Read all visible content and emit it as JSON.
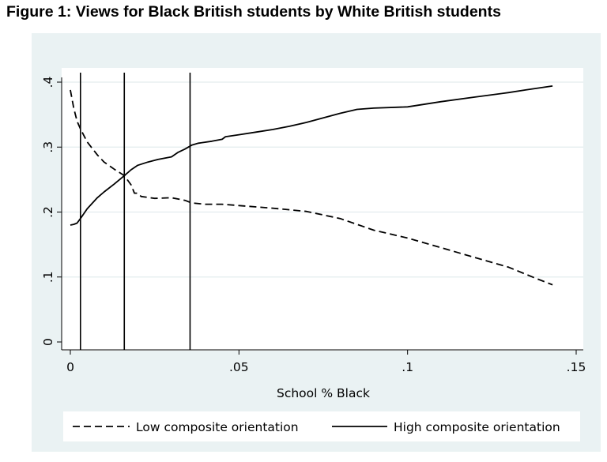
{
  "figure": {
    "title": "Figure 1: Views for Black British students by White British students"
  },
  "chart_data": {
    "type": "line",
    "title": "Figure 1: Views for Black British students by White British students",
    "xlabel": "School % Black",
    "ylabel": "",
    "xlim": [
      0,
      0.15
    ],
    "ylim": [
      0,
      0.4
    ],
    "x_ticks": [
      0,
      0.05,
      0.1,
      0.15
    ],
    "x_tick_labels": [
      "0",
      ".05",
      ".1",
      ".15"
    ],
    "y_ticks": [
      0,
      0.1,
      0.2,
      0.3,
      0.4
    ],
    "y_tick_labels": [
      "0",
      ".1",
      ".2",
      ".3",
      ".4"
    ],
    "grid": true,
    "legend_position": "bottom",
    "vertical_reference_lines": [
      0.003,
      0.016,
      0.0355
    ],
    "series": [
      {
        "name": "Low composite orientation",
        "style": "dashed",
        "color": "#000000",
        "points": [
          [
            0,
            0.388
          ],
          [
            0.001,
            0.36
          ],
          [
            0.002,
            0.34
          ],
          [
            0.003,
            0.328
          ],
          [
            0.005,
            0.308
          ],
          [
            0.008,
            0.288
          ],
          [
            0.01,
            0.277
          ],
          [
            0.013,
            0.266
          ],
          [
            0.016,
            0.256
          ],
          [
            0.018,
            0.242
          ],
          [
            0.019,
            0.229
          ],
          [
            0.02,
            0.229
          ],
          [
            0.021,
            0.224
          ],
          [
            0.025,
            0.221
          ],
          [
            0.03,
            0.222
          ],
          [
            0.034,
            0.218
          ],
          [
            0.036,
            0.214
          ],
          [
            0.04,
            0.212
          ],
          [
            0.045,
            0.212
          ],
          [
            0.05,
            0.21
          ],
          [
            0.06,
            0.206
          ],
          [
            0.07,
            0.201
          ],
          [
            0.08,
            0.19
          ],
          [
            0.085,
            0.181
          ],
          [
            0.09,
            0.172
          ],
          [
            0.1,
            0.16
          ],
          [
            0.11,
            0.145
          ],
          [
            0.12,
            0.13
          ],
          [
            0.13,
            0.115
          ],
          [
            0.138,
            0.098
          ],
          [
            0.143,
            0.088
          ]
        ]
      },
      {
        "name": "High composite orientation",
        "style": "solid",
        "color": "#000000",
        "points": [
          [
            0,
            0.18
          ],
          [
            0.001,
            0.181
          ],
          [
            0.002,
            0.183
          ],
          [
            0.003,
            0.19
          ],
          [
            0.005,
            0.205
          ],
          [
            0.008,
            0.222
          ],
          [
            0.01,
            0.231
          ],
          [
            0.013,
            0.243
          ],
          [
            0.016,
            0.256
          ],
          [
            0.018,
            0.265
          ],
          [
            0.02,
            0.272
          ],
          [
            0.023,
            0.277
          ],
          [
            0.026,
            0.281
          ],
          [
            0.03,
            0.285
          ],
          [
            0.032,
            0.292
          ],
          [
            0.034,
            0.297
          ],
          [
            0.036,
            0.303
          ],
          [
            0.038,
            0.306
          ],
          [
            0.042,
            0.309
          ],
          [
            0.045,
            0.312
          ],
          [
            0.046,
            0.316
          ],
          [
            0.05,
            0.319
          ],
          [
            0.055,
            0.323
          ],
          [
            0.06,
            0.327
          ],
          [
            0.065,
            0.332
          ],
          [
            0.07,
            0.338
          ],
          [
            0.075,
            0.345
          ],
          [
            0.08,
            0.352
          ],
          [
            0.085,
            0.358
          ],
          [
            0.09,
            0.36
          ],
          [
            0.1,
            0.362
          ],
          [
            0.11,
            0.37
          ],
          [
            0.12,
            0.377
          ],
          [
            0.13,
            0.384
          ],
          [
            0.135,
            0.388
          ],
          [
            0.143,
            0.394
          ]
        ]
      }
    ]
  }
}
